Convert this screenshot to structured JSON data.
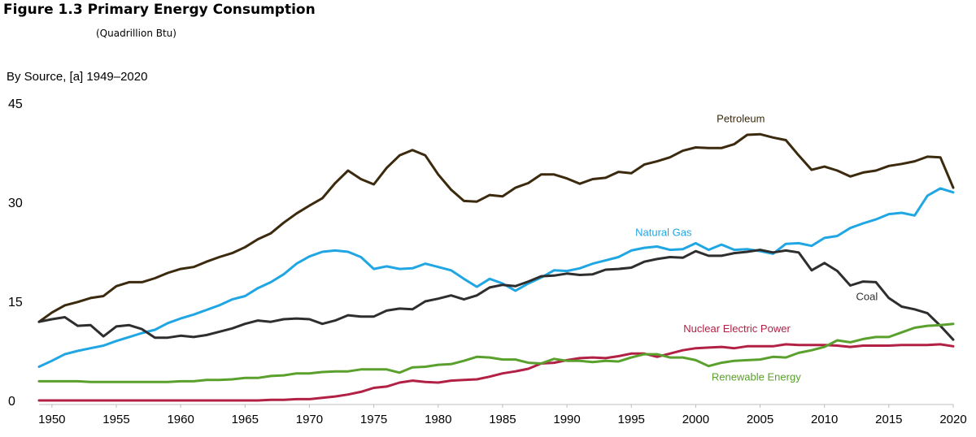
{
  "figure": {
    "title": "Figure 1.3  Primary Energy Consumption",
    "unit": "(Quadrillion Btu)",
    "subtitle": "By Source, [a] 1949–2020"
  },
  "chart_data": {
    "type": "line",
    "title": "Figure 1.3  Primary Energy Consumption",
    "subtitle": "By Source, [a] 1949–2020",
    "ylabel": "Quadrillion Btu",
    "xlabel": "",
    "xlim": [
      1949,
      2020
    ],
    "ylim": [
      0,
      45
    ],
    "yticks": [
      0,
      15,
      30,
      45
    ],
    "xticks": [
      1950,
      1955,
      1960,
      1965,
      1970,
      1975,
      1980,
      1985,
      1990,
      1995,
      2000,
      2005,
      2010,
      2015,
      2020
    ],
    "grid": false,
    "x": [
      1949,
      1950,
      1951,
      1952,
      1953,
      1954,
      1955,
      1956,
      1957,
      1958,
      1959,
      1960,
      1961,
      1962,
      1963,
      1964,
      1965,
      1966,
      1967,
      1968,
      1969,
      1970,
      1971,
      1972,
      1973,
      1974,
      1975,
      1976,
      1977,
      1978,
      1979,
      1980,
      1981,
      1982,
      1983,
      1984,
      1985,
      1986,
      1987,
      1988,
      1989,
      1990,
      1991,
      1992,
      1993,
      1994,
      1995,
      1996,
      1997,
      1998,
      1999,
      2000,
      2001,
      2002,
      2003,
      2004,
      2005,
      2006,
      2007,
      2008,
      2009,
      2010,
      2011,
      2012,
      2013,
      2014,
      2015,
      2016,
      2017,
      2018,
      2019,
      2020
    ],
    "series": [
      {
        "name": "Petroleum",
        "color": "#3b2a0e",
        "values": [
          11.9,
          13.3,
          14.4,
          14.9,
          15.5,
          15.8,
          17.3,
          17.9,
          17.9,
          18.5,
          19.3,
          19.9,
          20.2,
          21.0,
          21.7,
          22.3,
          23.2,
          24.4,
          25.3,
          26.9,
          28.3,
          29.5,
          30.6,
          32.9,
          34.8,
          33.5,
          32.7,
          35.2,
          37.1,
          37.9,
          37.1,
          34.2,
          31.9,
          30.2,
          30.1,
          31.1,
          30.9,
          32.2,
          32.9,
          34.2,
          34.2,
          33.6,
          32.8,
          33.5,
          33.7,
          34.6,
          34.4,
          35.7,
          36.2,
          36.8,
          37.8,
          38.3,
          38.2,
          38.2,
          38.8,
          40.2,
          40.3,
          39.8,
          39.4,
          37.1,
          34.9,
          35.4,
          34.8,
          33.9,
          34.5,
          34.8,
          35.5,
          35.8,
          36.2,
          36.9,
          36.8,
          32.2
        ]
      },
      {
        "name": "Natural Gas",
        "color": "#20a6e3",
        "values": [
          5.1,
          6.0,
          7.0,
          7.5,
          7.9,
          8.3,
          9.0,
          9.6,
          10.2,
          10.7,
          11.7,
          12.4,
          13.0,
          13.7,
          14.4,
          15.3,
          15.8,
          17.0,
          17.9,
          19.1,
          20.7,
          21.8,
          22.5,
          22.7,
          22.5,
          21.7,
          19.9,
          20.3,
          19.9,
          20.0,
          20.7,
          20.2,
          19.7,
          18.4,
          17.2,
          18.4,
          17.7,
          16.6,
          17.7,
          18.6,
          19.7,
          19.6,
          20.0,
          20.7,
          21.2,
          21.7,
          22.7,
          23.1,
          23.3,
          22.8,
          22.9,
          23.8,
          22.8,
          23.6,
          22.8,
          22.9,
          22.6,
          22.2,
          23.7,
          23.8,
          23.4,
          24.6,
          24.9,
          26.1,
          26.8,
          27.4,
          28.2,
          28.4,
          28.0,
          31.0,
          32.1,
          31.5
        ]
      },
      {
        "name": "Coal",
        "color": "#2e2e2e",
        "values": [
          11.9,
          12.3,
          12.6,
          11.3,
          11.4,
          9.7,
          11.2,
          11.4,
          10.8,
          9.5,
          9.5,
          9.8,
          9.6,
          9.9,
          10.4,
          10.9,
          11.6,
          12.1,
          11.9,
          12.3,
          12.4,
          12.3,
          11.6,
          12.1,
          12.9,
          12.7,
          12.7,
          13.6,
          13.9,
          13.8,
          15.0,
          15.4,
          15.9,
          15.3,
          15.9,
          17.1,
          17.5,
          17.3,
          18.0,
          18.8,
          18.9,
          19.2,
          19.0,
          19.1,
          19.8,
          19.9,
          20.1,
          21.0,
          21.4,
          21.7,
          21.6,
          22.6,
          21.9,
          21.9,
          22.3,
          22.5,
          22.8,
          22.4,
          22.7,
          22.4,
          19.7,
          20.8,
          19.6,
          17.4,
          18.0,
          17.9,
          15.5,
          14.2,
          13.8,
          13.2,
          11.3,
          9.2
        ]
      },
      {
        "name": "Nuclear Electric Power",
        "color": "#b22145",
        "values": [
          0,
          0,
          0,
          0,
          0,
          0,
          0,
          0,
          0,
          0,
          0,
          0,
          0,
          0,
          0,
          0,
          0,
          0,
          0.1,
          0.1,
          0.2,
          0.2,
          0.4,
          0.6,
          0.9,
          1.3,
          1.9,
          2.1,
          2.7,
          3.0,
          2.8,
          2.7,
          3.0,
          3.1,
          3.2,
          3.6,
          4.1,
          4.4,
          4.8,
          5.6,
          5.7,
          6.1,
          6.4,
          6.5,
          6.4,
          6.7,
          7.1,
          7.1,
          6.6,
          7.1,
          7.6,
          7.9,
          8.0,
          8.1,
          7.9,
          8.2,
          8.2,
          8.2,
          8.5,
          8.4,
          8.4,
          8.4,
          8.3,
          8.1,
          8.3,
          8.3,
          8.3,
          8.4,
          8.4,
          8.4,
          8.5,
          8.2
        ]
      },
      {
        "name": "Renewable Energy",
        "color": "#5aa02c",
        "values": [
          2.9,
          2.9,
          2.9,
          2.9,
          2.8,
          2.8,
          2.8,
          2.8,
          2.8,
          2.8,
          2.8,
          2.9,
          2.9,
          3.1,
          3.1,
          3.2,
          3.4,
          3.4,
          3.7,
          3.8,
          4.1,
          4.1,
          4.3,
          4.4,
          4.4,
          4.7,
          4.7,
          4.7,
          4.2,
          5.0,
          5.1,
          5.4,
          5.5,
          6.0,
          6.6,
          6.5,
          6.2,
          6.2,
          5.7,
          5.6,
          6.3,
          6.0,
          6.0,
          5.8,
          6.0,
          5.9,
          6.5,
          7.0,
          7.0,
          6.5,
          6.5,
          6.1,
          5.2,
          5.7,
          6.0,
          6.1,
          6.2,
          6.6,
          6.5,
          7.2,
          7.6,
          8.1,
          9.1,
          8.8,
          9.3,
          9.6,
          9.6,
          10.3,
          11.0,
          11.3,
          11.4,
          11.6
        ]
      }
    ],
    "annotations": [
      {
        "text": "Petroleum",
        "series": "Petroleum",
        "x": 2003.5,
        "y": 42.1
      },
      {
        "text": "Natural Gas",
        "series": "Natural Gas",
        "x": 1997.5,
        "y": 24.9
      },
      {
        "text": "Coal",
        "series": "Coal",
        "x": 2013.3,
        "y": 15.2
      },
      {
        "text": "Nuclear Electric Power",
        "series": "Nuclear Electric Power",
        "x": 2003.2,
        "y": 10.3
      },
      {
        "text": "Renewable Energy",
        "series": "Renewable Energy",
        "x": 2004.7,
        "y": 3.0
      }
    ]
  }
}
